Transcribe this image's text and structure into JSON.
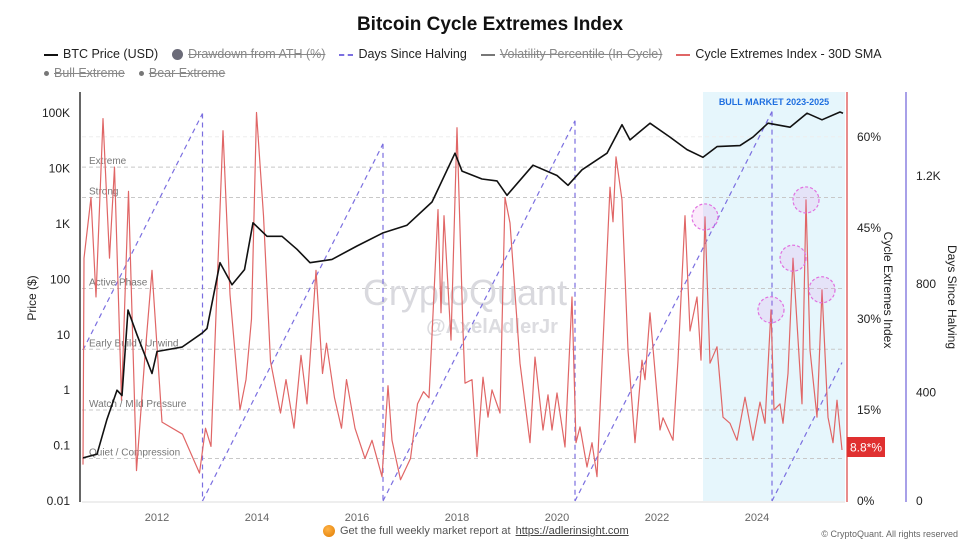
{
  "title": "Bitcoin Cycle Extremes Index",
  "legend": [
    {
      "label": "BTC Price (USD)",
      "style": "line",
      "color": "#111111",
      "hidden": false
    },
    {
      "label": "Drawdown from ATH (%)",
      "style": "dot-large",
      "color": "#6b6b78",
      "hidden": true
    },
    {
      "label": "Days Since Halving",
      "style": "dash",
      "color": "#7b6fe0",
      "hidden": false
    },
    {
      "label": "Volatility Percentile (In-Cycle)",
      "style": "line",
      "color": "#777777",
      "hidden": true
    },
    {
      "label": "Cycle Extremes Index - 30D SMA",
      "style": "line",
      "color": "#e06666",
      "hidden": false
    },
    {
      "label": "Bull Extreme",
      "style": "dot",
      "color": "#777777",
      "hidden": true
    },
    {
      "label": "Bear Extreme",
      "style": "dot",
      "color": "#777777",
      "hidden": true
    }
  ],
  "watermark": {
    "brand": "CryptoQuant",
    "handle": "@AxelAdlerJr"
  },
  "footer": {
    "text": "Get the full weekly market report at",
    "link": "https://adlerinsight.com",
    "copyright": "© CryptoQuant. All rights reserved"
  },
  "chart_data": {
    "type": "line",
    "title": "Bitcoin Cycle Extremes Index",
    "x_ticks": [
      "2012",
      "2014",
      "2016",
      "2018",
      "2020",
      "2022",
      "2024"
    ],
    "xlim": [
      2010.5,
      2025.76
    ],
    "grid": true,
    "legend_placement": "top",
    "axes": {
      "price": {
        "label": "Price ($)",
        "scale": "log",
        "range": [
          0.01,
          100000
        ],
        "ticks": [
          "100K",
          "10K",
          "1K",
          "100",
          "10",
          "1",
          "0.1",
          "0.01"
        ],
        "tick_values": [
          100000,
          10000,
          1000,
          100,
          10,
          1,
          0.1,
          0.01
        ]
      },
      "cei": {
        "label": "Cycle Extremes Index",
        "range": [
          0,
          67
        ],
        "ticks": [
          "60%",
          "45%",
          "30%",
          "15%",
          "0%"
        ],
        "tick_values": [
          60,
          45,
          30,
          15,
          0
        ],
        "color": "#e06666"
      },
      "days": {
        "label": "Days Since Halving",
        "range": [
          0,
          1850
        ],
        "ticks": [
          "1.2K",
          "800",
          "400",
          "0"
        ],
        "tick_values": [
          1200,
          800,
          400,
          0
        ],
        "color": "#8c80e0"
      }
    },
    "zones": [
      {
        "label": "Extreme",
        "value": 55
      },
      {
        "label": "Strong",
        "value": 50
      },
      {
        "label": "Active Phase",
        "value": 35
      },
      {
        "label": "Early Build / Unwind",
        "value": 25
      },
      {
        "label": "Watch / Mild Pressure",
        "value": 15
      },
      {
        "label": "Quiet / Compression",
        "value": 7
      }
    ],
    "highlight_region": {
      "label": "BULL MARKET 2023-2025",
      "from": 2022.92,
      "to": 2025.76,
      "color": "#e6f6fc",
      "label_color": "#1f6fe0"
    },
    "current_value_label": {
      "text": "8.8*%",
      "value": 8.8,
      "color": "#e03030"
    },
    "series": [
      {
        "name": "BTC Price (USD)",
        "axis": "price",
        "color": "#111111",
        "points": [
          [
            2010.52,
            0.06
          ],
          [
            2010.8,
            0.07
          ],
          [
            2011.0,
            0.3
          ],
          [
            2011.2,
            1
          ],
          [
            2011.3,
            0.8
          ],
          [
            2011.42,
            28
          ],
          [
            2011.6,
            10
          ],
          [
            2011.9,
            2
          ],
          [
            2012.0,
            5
          ],
          [
            2012.5,
            6
          ],
          [
            2012.9,
            10.7
          ],
          [
            2013.0,
            13
          ],
          [
            2013.26,
            200
          ],
          [
            2013.5,
            80
          ],
          [
            2013.75,
            150
          ],
          [
            2013.92,
            1050
          ],
          [
            2014.2,
            600
          ],
          [
            2014.5,
            600
          ],
          [
            2014.8,
            350
          ],
          [
            2015.06,
            200
          ],
          [
            2015.5,
            230
          ],
          [
            2016.0,
            400
          ],
          [
            2016.52,
            690
          ],
          [
            2017.0,
            950
          ],
          [
            2017.5,
            2500
          ],
          [
            2017.96,
            19000
          ],
          [
            2018.1,
            9000
          ],
          [
            2018.5,
            6500
          ],
          [
            2018.8,
            6000
          ],
          [
            2019.0,
            3300
          ],
          [
            2019.52,
            11500
          ],
          [
            2020.0,
            7500
          ],
          [
            2020.22,
            5000
          ],
          [
            2020.5,
            9500
          ],
          [
            2021.0,
            19000
          ],
          [
            2021.3,
            62000
          ],
          [
            2021.46,
            33000
          ],
          [
            2021.86,
            66000
          ],
          [
            2022.26,
            37000
          ],
          [
            2022.6,
            22000
          ],
          [
            2022.92,
            16000
          ],
          [
            2023.2,
            25000
          ],
          [
            2023.66,
            26000
          ],
          [
            2023.92,
            37000
          ],
          [
            2024.22,
            66000
          ],
          [
            2024.66,
            56000
          ],
          [
            2025.0,
            100000
          ],
          [
            2025.3,
            76000
          ],
          [
            2025.66,
            105000
          ],
          [
            2025.72,
            100000
          ]
        ]
      },
      {
        "name": "Days Since Halving",
        "axis": "days",
        "color": "#7b6fe0",
        "points": [
          [
            2010.52,
            557
          ],
          [
            2012.91,
            1430
          ],
          [
            2012.91,
            0
          ],
          [
            2016.52,
            1318
          ],
          [
            2016.52,
            0
          ],
          [
            2020.36,
            1403
          ],
          [
            2020.36,
            0
          ],
          [
            2024.3,
            1437
          ],
          [
            2024.3,
            0
          ],
          [
            2025.7,
            511
          ]
        ]
      },
      {
        "name": "Cycle Extremes Index - 30D SMA",
        "axis": "cei",
        "color": "#e06666",
        "points": [
          [
            2010.52,
            6
          ],
          [
            2010.54,
            40
          ],
          [
            2010.68,
            50
          ],
          [
            2010.78,
            33.6
          ],
          [
            2010.92,
            63
          ],
          [
            2011.05,
            40
          ],
          [
            2011.15,
            55
          ],
          [
            2011.29,
            16.6
          ],
          [
            2011.43,
            51
          ],
          [
            2011.59,
            5
          ],
          [
            2011.76,
            24
          ],
          [
            2011.9,
            38
          ],
          [
            2012.1,
            13
          ],
          [
            2012.51,
            11
          ],
          [
            2012.85,
            4.6
          ],
          [
            2012.97,
            12
          ],
          [
            2013.08,
            9
          ],
          [
            2013.32,
            61
          ],
          [
            2013.46,
            34
          ],
          [
            2013.66,
            15
          ],
          [
            2013.78,
            20
          ],
          [
            2013.89,
            30
          ],
          [
            2013.99,
            64
          ],
          [
            2014.13,
            47
          ],
          [
            2014.27,
            23
          ],
          [
            2014.47,
            14.5
          ],
          [
            2014.58,
            20
          ],
          [
            2014.74,
            12
          ],
          [
            2014.88,
            24
          ],
          [
            2015.0,
            16
          ],
          [
            2015.18,
            38
          ],
          [
            2015.31,
            21
          ],
          [
            2015.39,
            26
          ],
          [
            2015.55,
            17
          ],
          [
            2015.69,
            12
          ],
          [
            2015.79,
            20
          ],
          [
            2015.96,
            12
          ],
          [
            2016.16,
            7
          ],
          [
            2016.3,
            10
          ],
          [
            2016.5,
            4
          ],
          [
            2016.62,
            19
          ],
          [
            2016.7,
            10
          ],
          [
            2016.87,
            3.5
          ],
          [
            2017.07,
            7
          ],
          [
            2017.21,
            16
          ],
          [
            2017.33,
            18
          ],
          [
            2017.44,
            17
          ],
          [
            2017.62,
            48
          ],
          [
            2017.68,
            31
          ],
          [
            2017.74,
            47
          ],
          [
            2017.88,
            26.5
          ],
          [
            2017.94,
            44
          ],
          [
            2018.0,
            61.5
          ],
          [
            2018.12,
            28
          ],
          [
            2018.16,
            19.4
          ],
          [
            2018.3,
            20
          ],
          [
            2018.4,
            7.3
          ],
          [
            2018.52,
            20.4
          ],
          [
            2018.62,
            13.8
          ],
          [
            2018.7,
            18.3
          ],
          [
            2018.86,
            14.5
          ],
          [
            2018.96,
            50
          ],
          [
            2019.06,
            45.8
          ],
          [
            2019.26,
            22.7
          ],
          [
            2019.46,
            9.6
          ],
          [
            2019.56,
            23.7
          ],
          [
            2019.72,
            11.7
          ],
          [
            2019.82,
            17.5
          ],
          [
            2019.9,
            11.7
          ],
          [
            2020.0,
            17.8
          ],
          [
            2020.16,
            8.9
          ],
          [
            2020.3,
            33.6
          ],
          [
            2020.38,
            9.6
          ],
          [
            2020.46,
            12.2
          ],
          [
            2020.6,
            5.6
          ],
          [
            2020.7,
            9.6
          ],
          [
            2020.8,
            4
          ],
          [
            2020.92,
            26
          ],
          [
            2021.06,
            51.7
          ],
          [
            2021.12,
            46
          ],
          [
            2021.18,
            56.7
          ],
          [
            2021.3,
            49.6
          ],
          [
            2021.42,
            24.9
          ],
          [
            2021.56,
            9.6
          ],
          [
            2021.7,
            23.2
          ],
          [
            2021.76,
            20
          ],
          [
            2021.86,
            31
          ],
          [
            2022.06,
            11.7
          ],
          [
            2022.12,
            13.7
          ],
          [
            2022.32,
            10
          ],
          [
            2022.42,
            23.2
          ],
          [
            2022.56,
            47
          ],
          [
            2022.66,
            28
          ],
          [
            2022.8,
            33.6
          ],
          [
            2022.88,
            23.2
          ],
          [
            2022.96,
            46.8
          ],
          [
            2023.06,
            22.7
          ],
          [
            2023.2,
            25.4
          ],
          [
            2023.32,
            13.8
          ],
          [
            2023.46,
            12.8
          ],
          [
            2023.6,
            10
          ],
          [
            2023.76,
            17.1
          ],
          [
            2023.92,
            10
          ],
          [
            2024.06,
            16.3
          ],
          [
            2024.16,
            12.8
          ],
          [
            2024.28,
            31.5
          ],
          [
            2024.34,
            15
          ],
          [
            2024.46,
            16
          ],
          [
            2024.52,
            12.8
          ],
          [
            2024.62,
            21
          ],
          [
            2024.72,
            40
          ],
          [
            2024.9,
            16
          ],
          [
            2024.98,
            49.6
          ],
          [
            2025.06,
            24.9
          ],
          [
            2025.2,
            13.8
          ],
          [
            2025.3,
            34.8
          ],
          [
            2025.42,
            13.8
          ],
          [
            2025.52,
            9.6
          ],
          [
            2025.6,
            16.6
          ],
          [
            2025.7,
            8.4
          ]
        ]
      }
    ],
    "highlighted_peaks": [
      [
        2022.96,
        46.8
      ],
      [
        2024.28,
        31.5
      ],
      [
        2024.72,
        40
      ],
      [
        2024.98,
        49.6
      ],
      [
        2025.3,
        34.8
      ]
    ]
  }
}
